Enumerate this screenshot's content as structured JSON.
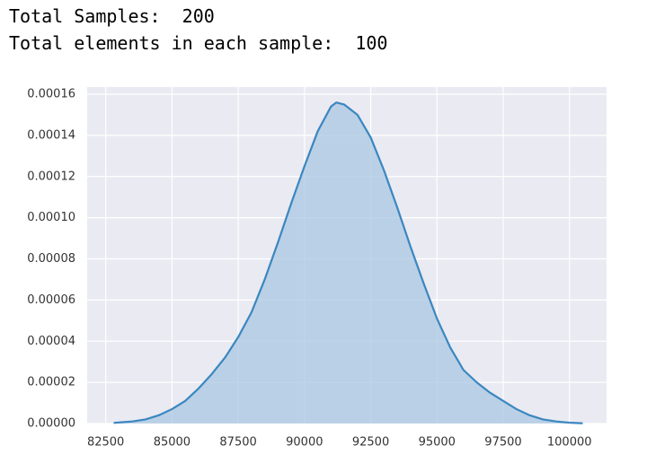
{
  "header": {
    "line1": "Total Samples:  200",
    "line2": "Total elements in each sample:  100"
  },
  "chart_data": {
    "type": "kde",
    "x": [
      82800,
      83500,
      84000,
      84500,
      85000,
      85500,
      86000,
      86500,
      87000,
      87500,
      88000,
      88500,
      89000,
      89500,
      90000,
      90500,
      91000,
      91200,
      91500,
      92000,
      92500,
      93000,
      93500,
      94000,
      94500,
      95000,
      95500,
      96000,
      96500,
      97000,
      97500,
      98000,
      98500,
      99000,
      99500,
      100000,
      100500
    ],
    "values": [
      3e-07,
      1e-06,
      2e-06,
      4e-06,
      7e-06,
      1.1e-05,
      1.7e-05,
      2.4e-05,
      3.2e-05,
      4.2e-05,
      5.4e-05,
      7e-05,
      8.8e-05,
      0.000107,
      0.000125,
      0.000142,
      0.000154,
      0.000156,
      0.000155,
      0.00015,
      0.000139,
      0.000123,
      0.000105,
      8.6e-05,
      6.8e-05,
      5.1e-05,
      3.7e-05,
      2.6e-05,
      2e-05,
      1.5e-05,
      1.1e-05,
      7e-06,
      4e-06,
      2e-06,
      1e-06,
      4e-07,
      1e-07
    ],
    "color": "#3a87c0",
    "fill_color": "#a9c7e1",
    "xlim": [
      81800,
      101400
    ],
    "ylim": [
      0,
      0.0001635
    ],
    "xticks": [
      82500,
      85000,
      87500,
      90000,
      92500,
      95000,
      97500,
      100000
    ],
    "yticks": [
      {
        "value": 0,
        "label": "0.00000"
      },
      2e-05,
      4e-05,
      6e-05,
      8e-05,
      {
        "value": 0.0001,
        "label": "0.00010"
      },
      0.00012,
      0.00014,
      0.00016
    ],
    "grid": true
  }
}
